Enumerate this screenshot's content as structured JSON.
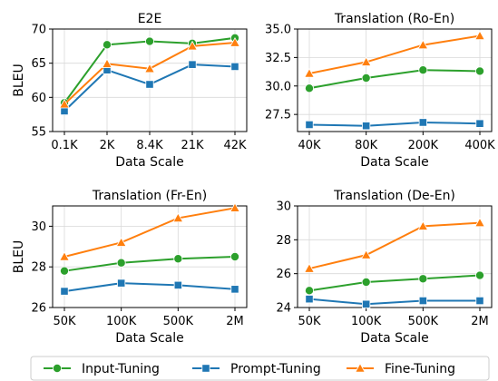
{
  "colors": {
    "input": "#2ca02c",
    "prompt": "#1f77b4",
    "fine": "#ff7f0e"
  },
  "legend": [
    {
      "key": "input",
      "label": "Input-Tuning",
      "marker": "circle"
    },
    {
      "key": "prompt",
      "label": "Prompt-Tuning",
      "marker": "square"
    },
    {
      "key": "fine",
      "label": "Fine-Tuning",
      "marker": "triangle"
    }
  ],
  "chart_data": [
    {
      "type": "line",
      "title": "E2E",
      "xlabel": "Data Scale",
      "ylabel": "BLEU",
      "categories": [
        "0.1K",
        "2K",
        "8.4K",
        "21K",
        "42K"
      ],
      "ylim": [
        55,
        70
      ],
      "yticks": [
        55,
        60,
        65,
        70
      ],
      "ytick_labels": [
        "55",
        "60",
        "65",
        "70"
      ],
      "grid": true,
      "series": [
        {
          "key": "input",
          "name": "Input-Tuning",
          "values": [
            59.2,
            67.7,
            68.2,
            67.9,
            68.7
          ]
        },
        {
          "key": "prompt",
          "name": "Prompt-Tuning",
          "values": [
            58.0,
            64.0,
            61.9,
            64.8,
            64.5
          ]
        },
        {
          "key": "fine",
          "name": "Fine-Tuning",
          "values": [
            59.0,
            64.9,
            64.2,
            67.5,
            68.0
          ]
        }
      ]
    },
    {
      "type": "line",
      "title": "Translation (Ro-En)",
      "xlabel": "Data Scale",
      "ylabel": "",
      "categories": [
        "40K",
        "80K",
        "200K",
        "400K"
      ],
      "ylim": [
        26.0,
        35.0
      ],
      "yticks": [
        27.5,
        30.0,
        32.5,
        35.0
      ],
      "ytick_labels": [
        "27.5",
        "30.0",
        "32.5",
        "35.0"
      ],
      "grid": true,
      "series": [
        {
          "key": "input",
          "name": "Input-Tuning",
          "values": [
            29.8,
            30.7,
            31.4,
            31.3
          ]
        },
        {
          "key": "prompt",
          "name": "Prompt-Tuning",
          "values": [
            26.6,
            26.5,
            26.8,
            26.7
          ]
        },
        {
          "key": "fine",
          "name": "Fine-Tuning",
          "values": [
            31.1,
            32.1,
            33.6,
            34.4
          ]
        }
      ]
    },
    {
      "type": "line",
      "title": "Translation (Fr-En)",
      "xlabel": "Data Scale",
      "ylabel": "BLEU",
      "categories": [
        "50K",
        "100K",
        "500K",
        "2M"
      ],
      "ylim": [
        26,
        31
      ],
      "yticks": [
        26,
        28,
        30
      ],
      "ytick_labels": [
        "26",
        "28",
        "30"
      ],
      "grid": true,
      "series": [
        {
          "key": "input",
          "name": "Input-Tuning",
          "values": [
            27.8,
            28.2,
            28.4,
            28.5
          ]
        },
        {
          "key": "prompt",
          "name": "Prompt-Tuning",
          "values": [
            26.8,
            27.2,
            27.1,
            26.9
          ]
        },
        {
          "key": "fine",
          "name": "Fine-Tuning",
          "values": [
            28.5,
            29.2,
            30.4,
            30.9
          ]
        }
      ]
    },
    {
      "type": "line",
      "title": "Translation (De-En)",
      "xlabel": "Data Scale",
      "ylabel": "",
      "categories": [
        "50K",
        "100K",
        "500K",
        "2M"
      ],
      "ylim": [
        24,
        30
      ],
      "yticks": [
        24,
        26,
        28,
        30
      ],
      "ytick_labels": [
        "24",
        "26",
        "28",
        "30"
      ],
      "grid": true,
      "series": [
        {
          "key": "input",
          "name": "Input-Tuning",
          "values": [
            25.0,
            25.5,
            25.7,
            25.9
          ]
        },
        {
          "key": "prompt",
          "name": "Prompt-Tuning",
          "values": [
            24.5,
            24.2,
            24.4,
            24.4
          ]
        },
        {
          "key": "fine",
          "name": "Fine-Tuning",
          "values": [
            26.3,
            27.1,
            28.8,
            29.0
          ]
        }
      ]
    }
  ]
}
